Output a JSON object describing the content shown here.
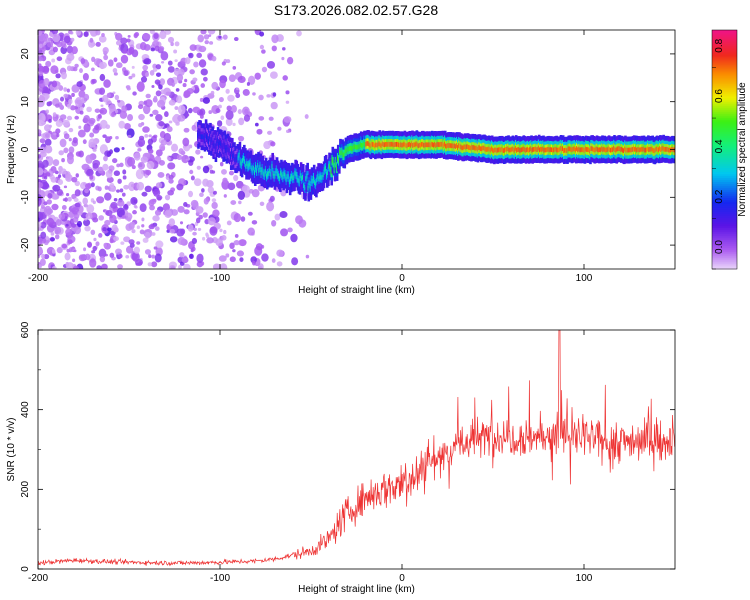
{
  "title": "S173.2026.082.02.57.G28",
  "chart_data": [
    {
      "type": "heatmap",
      "name": "spectrogram",
      "xlabel": "Height of straight line (km)",
      "ylabel": "Frequency (Hz)",
      "xlim": [
        -200,
        150
      ],
      "ylim": [
        -25,
        25
      ],
      "x_ticks": [
        -200,
        -100,
        0,
        100
      ],
      "y_ticks": [
        -20,
        -10,
        0,
        10,
        20
      ],
      "colorbar": {
        "label": "Normalized spectral amplitude",
        "range": [
          0,
          0.95
        ],
        "ticks": [
          0.0,
          0.2,
          0.4,
          0.6,
          0.8
        ]
      },
      "ridge": {
        "description_points_x": [
          -110,
          -100,
          -90,
          -80,
          -70,
          -60,
          -50,
          -40,
          -30,
          -20,
          -10,
          0,
          10,
          20,
          50,
          80,
          100,
          150
        ],
        "freq_hz": [
          3,
          1,
          -2,
          -4,
          -5,
          -6,
          -7,
          -4,
          0,
          1,
          1,
          1,
          1,
          1,
          0,
          0,
          0,
          0
        ]
      }
    },
    {
      "type": "line",
      "name": "snr",
      "xlabel": "Height of straight line (km)",
      "ylabel": "SNR (10 * v/v)",
      "xlim": [
        -200,
        150
      ],
      "ylim": [
        0,
        600
      ],
      "x_ticks": [
        -200,
        -100,
        0,
        100
      ],
      "y_ticks": [
        0,
        200,
        400,
        600
      ],
      "color": "#ee3333",
      "series": [
        {
          "name": "SNR",
          "x": [
            -200,
            -180,
            -160,
            -140,
            -120,
            -100,
            -80,
            -70,
            -60,
            -50,
            -45,
            -40,
            -35,
            -30,
            -25,
            -20,
            -10,
            0,
            10,
            20,
            30,
            40,
            50,
            60,
            70,
            80,
            90,
            100,
            110,
            120,
            130,
            140,
            150
          ],
          "values": [
            15,
            22,
            18,
            16,
            15,
            17,
            20,
            25,
            35,
            45,
            60,
            75,
            110,
            140,
            160,
            180,
            200,
            215,
            250,
            285,
            310,
            325,
            335,
            335,
            330,
            335,
            335,
            330,
            320,
            320,
            325,
            320,
            320
          ]
        }
      ]
    }
  ]
}
